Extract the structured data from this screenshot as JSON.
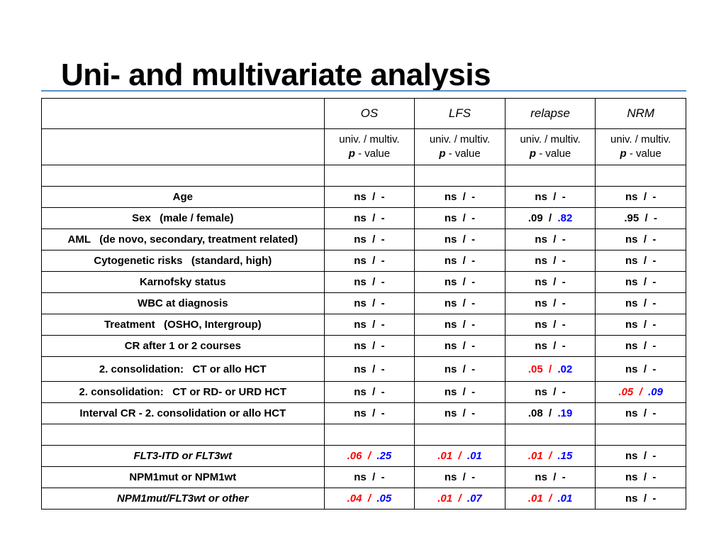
{
  "title": "Uni- and multivariate analysis",
  "columns": [
    "OS",
    "LFS",
    "relapse",
    "NRM"
  ],
  "subheader": {
    "line1": "univ. / multiv.",
    "p": "p",
    "rest": " - value"
  },
  "rows": [
    {
      "label": "Age",
      "italic": false,
      "cells": [
        {
          "a": "ns",
          "ac": "blk",
          "b": "-",
          "bc": "blk"
        },
        {
          "a": "ns",
          "ac": "blk",
          "b": "-",
          "bc": "blk"
        },
        {
          "a": "ns",
          "ac": "blk",
          "b": "-",
          "bc": "blk"
        },
        {
          "a": "ns",
          "ac": "blk",
          "b": "-",
          "bc": "blk"
        }
      ]
    },
    {
      "label": "Sex   (male / female)",
      "italic": false,
      "cells": [
        {
          "a": "ns",
          "ac": "blk",
          "b": "-",
          "bc": "blk"
        },
        {
          "a": "ns",
          "ac": "blk",
          "b": "-",
          "bc": "blk"
        },
        {
          "a": ".09",
          "ac": "blk",
          "b": ".82",
          "bc": "blue"
        },
        {
          "a": ".95",
          "ac": "blk",
          "b": "-",
          "bc": "blk"
        }
      ]
    },
    {
      "label": "AML   (de novo, secondary, treatment related)",
      "italic": false,
      "cells": [
        {
          "a": "ns",
          "ac": "blk",
          "b": "-",
          "bc": "blk"
        },
        {
          "a": "ns",
          "ac": "blk",
          "b": "-",
          "bc": "blk"
        },
        {
          "a": "ns",
          "ac": "blk",
          "b": "-",
          "bc": "blk"
        },
        {
          "a": "ns",
          "ac": "blk",
          "b": "-",
          "bc": "blk"
        }
      ]
    },
    {
      "label": "Cytogenetic risks   (standard, high)",
      "italic": false,
      "cells": [
        {
          "a": "ns",
          "ac": "blk",
          "b": "-",
          "bc": "blk"
        },
        {
          "a": "ns",
          "ac": "blk",
          "b": "-",
          "bc": "blk"
        },
        {
          "a": "ns",
          "ac": "blk",
          "b": "-",
          "bc": "blk"
        },
        {
          "a": "ns",
          "ac": "blk",
          "b": "-",
          "bc": "blk"
        }
      ]
    },
    {
      "label": "Karnofsky status",
      "italic": false,
      "cells": [
        {
          "a": "ns",
          "ac": "blk",
          "b": "-",
          "bc": "blk"
        },
        {
          "a": "ns",
          "ac": "blk",
          "b": "-",
          "bc": "blk"
        },
        {
          "a": "ns",
          "ac": "blk",
          "b": "-",
          "bc": "blk"
        },
        {
          "a": "ns",
          "ac": "blk",
          "b": "-",
          "bc": "blk"
        }
      ]
    },
    {
      "label": "WBC at diagnosis",
      "italic": false,
      "cells": [
        {
          "a": "ns",
          "ac": "blk",
          "b": "-",
          "bc": "blk"
        },
        {
          "a": "ns",
          "ac": "blk",
          "b": "-",
          "bc": "blk"
        },
        {
          "a": "ns",
          "ac": "blk",
          "b": "-",
          "bc": "blk"
        },
        {
          "a": "ns",
          "ac": "blk",
          "b": "-",
          "bc": "blk"
        }
      ]
    },
    {
      "label": "Treatment   (OSHO, Intergroup)",
      "italic": false,
      "cells": [
        {
          "a": "ns",
          "ac": "blk",
          "b": "-",
          "bc": "blk"
        },
        {
          "a": "ns",
          "ac": "blk",
          "b": "-",
          "bc": "blk"
        },
        {
          "a": "ns",
          "ac": "blk",
          "b": "-",
          "bc": "blk"
        },
        {
          "a": "ns",
          "ac": "blk",
          "b": "-",
          "bc": "blk"
        }
      ]
    },
    {
      "label": "CR after 1 or 2 courses",
      "italic": false,
      "cells": [
        {
          "a": "ns",
          "ac": "blk",
          "b": "-",
          "bc": "blk"
        },
        {
          "a": "ns",
          "ac": "blk",
          "b": "-",
          "bc": "blk"
        },
        {
          "a": "ns",
          "ac": "blk",
          "b": "-",
          "bc": "blk"
        },
        {
          "a": "ns",
          "ac": "blk",
          "b": "-",
          "bc": "blk"
        }
      ]
    },
    {
      "label": "2. consolidation:   CT or allo HCT",
      "italic": false,
      "tall": true,
      "cells": [
        {
          "a": "ns",
          "ac": "blk",
          "b": "-",
          "bc": "blk"
        },
        {
          "a": "ns",
          "ac": "blk",
          "b": "-",
          "bc": "blk"
        },
        {
          "a": ".05",
          "ac": "red",
          "b": ".02",
          "bc": "blue",
          "redSlash": true
        },
        {
          "a": "ns",
          "ac": "blk",
          "b": "-",
          "bc": "blk"
        }
      ]
    },
    {
      "label": "2. consolidation:   CT or RD- or URD HCT",
      "italic": false,
      "cells": [
        {
          "a": "ns",
          "ac": "blk",
          "b": "-",
          "bc": "blk"
        },
        {
          "a": "ns",
          "ac": "blk",
          "b": "-",
          "bc": "blk"
        },
        {
          "a": "ns",
          "ac": "blk",
          "b": "-",
          "bc": "blk"
        },
        {
          "a": ".05",
          "ac": "red",
          "b": ".09",
          "bc": "blue",
          "redSlash": true,
          "italicVal": true
        }
      ]
    },
    {
      "label": "Interval CR - 2. consolidation or allo HCT",
      "italic": false,
      "cells": [
        {
          "a": "ns",
          "ac": "blk",
          "b": "-",
          "bc": "blk"
        },
        {
          "a": "ns",
          "ac": "blk",
          "b": "-",
          "bc": "blk"
        },
        {
          "a": ".08",
          "ac": "blk",
          "b": ".19",
          "bc": "blue"
        },
        {
          "a": "ns",
          "ac": "blk",
          "b": "-",
          "bc": "blk"
        }
      ]
    },
    {
      "spacer": true
    },
    {
      "label": "FLT3-ITD or FLT3wt",
      "italic": true,
      "cells": [
        {
          "a": ".06",
          "ac": "red",
          "b": ".25",
          "bc": "blue",
          "redSlash": true,
          "italicVal": true
        },
        {
          "a": ".01",
          "ac": "red",
          "b": ".01",
          "bc": "blue",
          "redSlash": true,
          "italicVal": true
        },
        {
          "a": ".01",
          "ac": "red",
          "b": ".15",
          "bc": "blue",
          "redSlash": true,
          "italicVal": true
        },
        {
          "a": "ns",
          "ac": "blk",
          "b": "-",
          "bc": "blk"
        }
      ]
    },
    {
      "label": "NPM1mut or NPM1wt",
      "italic": false,
      "cells": [
        {
          "a": "ns",
          "ac": "blk",
          "b": "-",
          "bc": "blk"
        },
        {
          "a": "ns",
          "ac": "blk",
          "b": "-",
          "bc": "blk"
        },
        {
          "a": "ns",
          "ac": "blk",
          "b": "-",
          "bc": "blk"
        },
        {
          "a": "ns",
          "ac": "blk",
          "b": "-",
          "bc": "blk"
        }
      ]
    },
    {
      "label": "NPM1mut/FLT3wt or other",
      "italic": true,
      "cells": [
        {
          "a": ".04",
          "ac": "red",
          "b": ".05",
          "bc": "blue",
          "redSlash": true,
          "italicVal": true
        },
        {
          "a": ".01",
          "ac": "red",
          "b": ".07",
          "bc": "blue",
          "redSlash": true,
          "italicVal": true
        },
        {
          "a": ".01",
          "ac": "red",
          "b": ".01",
          "bc": "blue",
          "redSlash": true,
          "italicVal": true
        },
        {
          "a": "ns",
          "ac": "blk",
          "b": "-",
          "bc": "blk"
        }
      ]
    }
  ]
}
